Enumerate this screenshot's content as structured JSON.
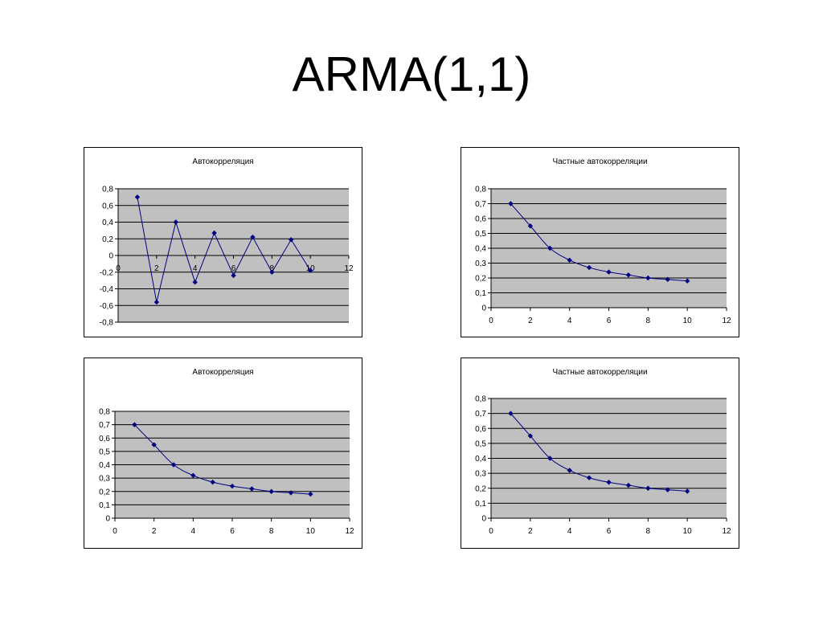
{
  "slide": {
    "title": "ARMA(1,1)"
  },
  "colors": {
    "plot_bg": "#c0c0c0",
    "grid": "#000000",
    "series": "#000080"
  },
  "chart_data": [
    {
      "type": "line",
      "title": "Автокорреляция",
      "x": [
        1,
        2,
        3,
        4,
        5,
        6,
        7,
        8,
        9,
        10
      ],
      "values": [
        0.7,
        -0.56,
        0.4,
        -0.32,
        0.27,
        -0.24,
        0.22,
        -0.2,
        0.19,
        -0.18
      ],
      "smooth": false,
      "xlim": [
        0,
        12
      ],
      "xticks": [
        "0",
        "2",
        "4",
        "6",
        "8",
        "10",
        "12"
      ],
      "ylim": [
        -0.8,
        0.8
      ],
      "yticks": [
        "0,8",
        "0,6",
        "0,4",
        "0,2",
        "0",
        "-0,2",
        "-0,4",
        "-0,6",
        "-0,8"
      ],
      "x_labels_at_zero": true,
      "grid": true
    },
    {
      "type": "line",
      "title": "Частные автокорреляции",
      "x": [
        1,
        2,
        3,
        4,
        5,
        6,
        7,
        8,
        9,
        10
      ],
      "values": [
        0.7,
        0.55,
        0.4,
        0.32,
        0.27,
        0.24,
        0.22,
        0.2,
        0.19,
        0.18
      ],
      "smooth": true,
      "xlim": [
        0,
        12
      ],
      "xticks": [
        "0",
        "2",
        "4",
        "6",
        "8",
        "10",
        "12"
      ],
      "ylim": [
        0,
        0.8
      ],
      "yticks": [
        "0,8",
        "0,7",
        "0,6",
        "0,5",
        "0,4",
        "0,3",
        "0,2",
        "0,1",
        "0"
      ],
      "x_labels_at_zero": false,
      "grid": true
    },
    {
      "type": "line",
      "title": "Автокорреляция",
      "x": [
        1,
        2,
        3,
        4,
        5,
        6,
        7,
        8,
        9,
        10
      ],
      "values": [
        0.7,
        0.55,
        0.4,
        0.32,
        0.27,
        0.24,
        0.22,
        0.2,
        0.19,
        0.18
      ],
      "smooth": true,
      "xlim": [
        0,
        12
      ],
      "xticks": [
        "0",
        "2",
        "4",
        "6",
        "8",
        "10",
        "12"
      ],
      "ylim": [
        0,
        0.8
      ],
      "yticks": [
        "0,8",
        "0,7",
        "0,6",
        "0,5",
        "0,4",
        "0,3",
        "0,2",
        "0,1",
        "0"
      ],
      "x_labels_at_zero": false,
      "grid": true
    },
    {
      "type": "line",
      "title": "Частные автокорреляции",
      "x": [
        1,
        2,
        3,
        4,
        5,
        6,
        7,
        8,
        9,
        10
      ],
      "values": [
        0.7,
        0.55,
        0.4,
        0.32,
        0.27,
        0.24,
        0.22,
        0.2,
        0.19,
        0.18
      ],
      "smooth": true,
      "xlim": [
        0,
        12
      ],
      "xticks": [
        "0",
        "2",
        "4",
        "6",
        "8",
        "10",
        "12"
      ],
      "ylim": [
        0,
        0.8
      ],
      "yticks": [
        "0,8",
        "0,7",
        "0,6",
        "0,5",
        "0,4",
        "0,3",
        "0,2",
        "0,1",
        "0"
      ],
      "x_labels_at_zero": false,
      "grid": true
    }
  ]
}
